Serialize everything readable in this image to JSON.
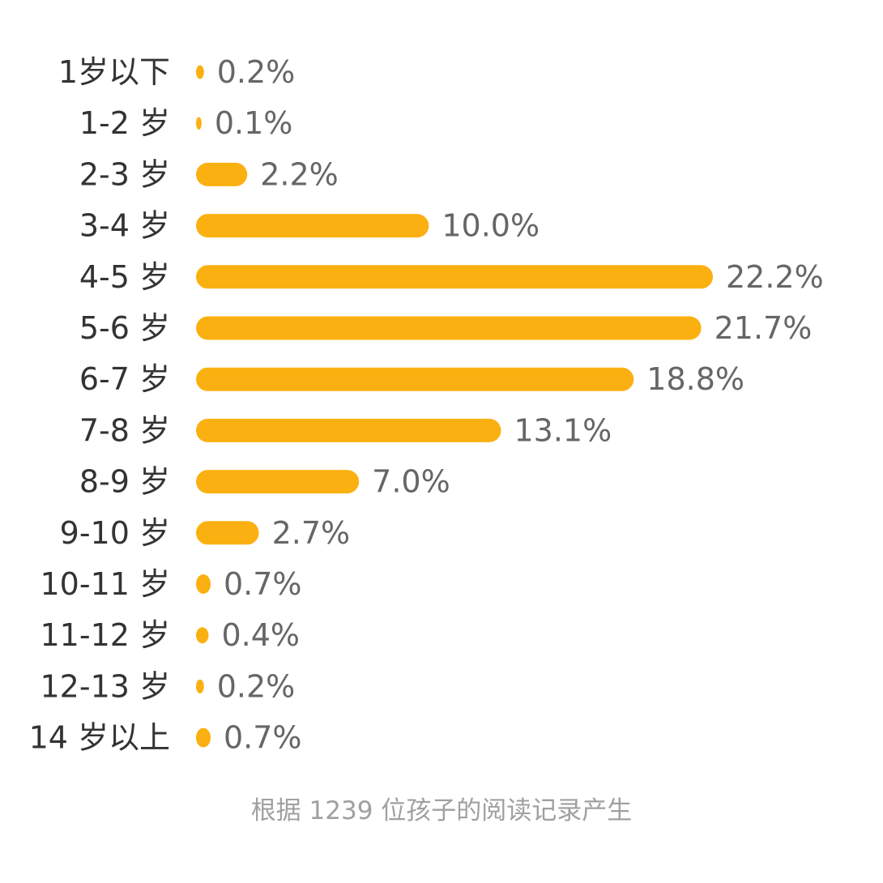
{
  "chart_data": {
    "type": "bar",
    "orientation": "horizontal",
    "categories": [
      "1岁以下",
      "1-2 岁",
      "2-3 岁",
      "3-4 岁",
      "4-5 岁",
      "5-6 岁",
      "6-7 岁",
      "7-8 岁",
      "8-9 岁",
      "9-10 岁",
      "10-11 岁",
      "11-12 岁",
      "12-13 岁",
      "14 岁以上"
    ],
    "values": [
      0.2,
      0.1,
      2.2,
      10.0,
      22.2,
      21.7,
      18.8,
      13.1,
      7.0,
      2.7,
      0.7,
      0.4,
      0.2,
      0.7
    ],
    "value_labels": [
      "0.2%",
      "0.1%",
      "2.2%",
      "10.0%",
      "22.2%",
      "21.7%",
      "18.8%",
      "13.1%",
      "7.0%",
      "2.7%",
      "0.7%",
      "0.4%",
      "0.2%",
      "0.7%"
    ],
    "title": "",
    "xlabel": "",
    "ylabel": "",
    "xlim": [
      0,
      22.2
    ],
    "grid": false,
    "legend": "none",
    "bar_color": "#FBB011"
  },
  "footnote": "根据 1239 位孩子的阅读记录产生"
}
